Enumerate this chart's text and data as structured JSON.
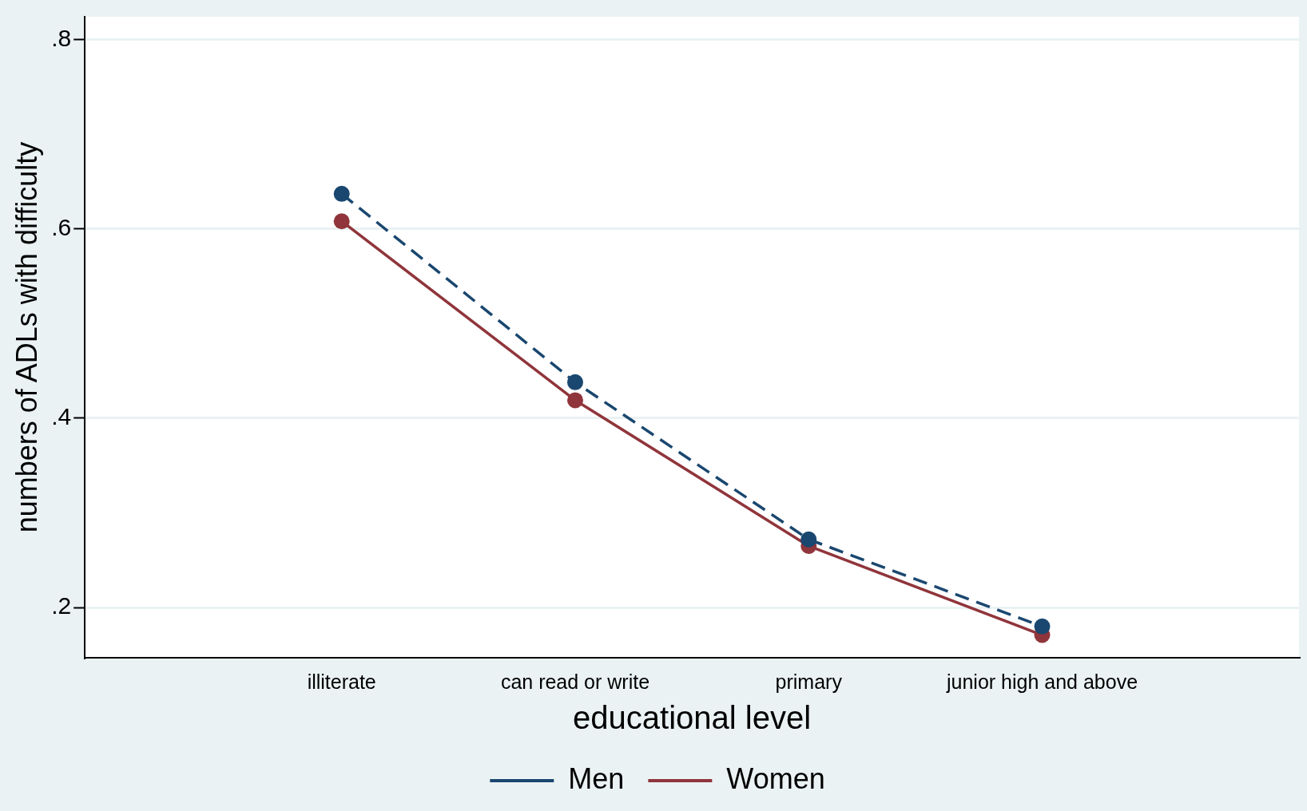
{
  "chart_data": {
    "type": "line",
    "xlabel": "educational level",
    "ylabel": "numbers of ADLs with difficulty",
    "categories": [
      "illiterate",
      "can read or write",
      "primary",
      "junior high and above"
    ],
    "series": [
      {
        "name": "Men",
        "color": "#1a476f",
        "values": [
          0.637,
          0.438,
          0.272,
          0.18
        ],
        "line_style": "dashed"
      },
      {
        "name": "Women",
        "color": "#90353b",
        "values": [
          0.608,
          0.419,
          0.265,
          0.171
        ],
        "line_style": "solid"
      }
    ],
    "ylim": [
      0.147,
      0.824
    ],
    "yticks": [
      {
        "value": 0.2,
        "label": ".2"
      },
      {
        "value": 0.4,
        "label": ".4"
      },
      {
        "value": 0.6,
        "label": ".6"
      },
      {
        "value": 0.8,
        "label": ".8"
      }
    ],
    "grid": "y",
    "legend": "bottom",
    "marker": "circle"
  }
}
